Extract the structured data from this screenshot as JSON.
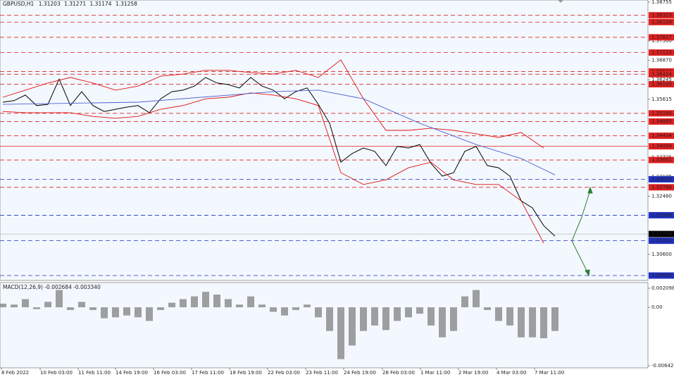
{
  "chart_data": {
    "type": "line",
    "symbol": "GBPUSD,H1",
    "ohlc": [
      1.31203,
      1.31271,
      1.31174,
      1.31258
    ],
    "xlim": [
      -0.25,
      57.25
    ],
    "xticks": [
      {
        "value": -0.125,
        "label": "8 Feb 2022"
      },
      {
        "value": 3.3125,
        "label": "10 Feb 03:00"
      },
      {
        "value": 6.6875,
        "label": "11 Feb 11:00"
      },
      {
        "value": 10,
        "label": "14 Feb 19:00"
      },
      {
        "value": 13.375,
        "label": "16 Feb 03:00"
      },
      {
        "value": 16.75,
        "label": "17 Feb 11:00"
      },
      {
        "value": 20.125,
        "label": "18 Feb 19:00"
      },
      {
        "value": 23.5,
        "label": "22 Feb 03:00"
      },
      {
        "value": 26.875,
        "label": "23 Feb 11:00"
      },
      {
        "value": 30.25,
        "label": "24 Feb 19:00"
      },
      {
        "value": 33.6875,
        "label": "28 Feb 03:00"
      },
      {
        "value": 37.0625,
        "label": "1 Mar 11:00"
      },
      {
        "value": 40.4375,
        "label": "2 Mar 19:00"
      },
      {
        "value": 43.8125,
        "label": "4 Mar 03:00"
      },
      {
        "value": 47.1875,
        "label": "7 Mar 11:00"
      }
    ],
    "ylim": [
      1.29757,
      1.38823
    ],
    "yticks": [
      1.38755,
      {
        "value": 1.375,
        "label": "1.37500"
      },
      {
        "value": 1.3687,
        "label": "1.36870"
      },
      1.36245,
      1.35615,
      1.33735,
      1.33105,
      {
        "value": 1.3248,
        "label": "1.32480"
      },
      {
        "value": 1.306,
        "label": "1.30600"
      }
    ],
    "series": [
      {
        "color": "#000000",
        "x": [
          0,
          1,
          2,
          3,
          4,
          5,
          6,
          7,
          8,
          9,
          10,
          11,
          12,
          13,
          14,
          15,
          16,
          17,
          18,
          19,
          20,
          21,
          22,
          23,
          24,
          25,
          26,
          27,
          28,
          29,
          30,
          31,
          32,
          33,
          34,
          35,
          36,
          37,
          38,
          39,
          40,
          41,
          42,
          43,
          44,
          45,
          46,
          47,
          48,
          49
        ],
        "values": [
          1.3552,
          1.3557,
          1.3575,
          1.3541,
          1.3545,
          1.3627,
          1.3541,
          1.3586,
          1.3541,
          1.3522,
          1.3529,
          1.3536,
          1.3541,
          1.3518,
          1.3563,
          1.3586,
          1.3591,
          1.3604,
          1.3632,
          1.3614,
          1.3609,
          1.3598,
          1.3632,
          1.3604,
          1.3591,
          1.3563,
          1.3586,
          1.3598,
          1.3545,
          1.3484,
          1.3358,
          1.3386,
          1.3404,
          1.3393,
          1.3347,
          1.3409,
          1.3404,
          1.3415,
          1.3354,
          1.3313,
          1.3324,
          1.3393,
          1.3409,
          1.3347,
          1.334,
          1.3313,
          1.3233,
          1.321,
          1.3153,
          1.3119
        ]
      },
      {
        "color": "#e01010",
        "x": [
          0,
          2,
          4,
          6,
          8,
          10,
          12,
          14,
          16,
          18,
          20,
          22,
          24,
          26,
          28,
          30,
          32,
          34,
          36,
          38,
          40,
          42,
          44,
          46,
          48
        ],
        "values": [
          1.3568,
          1.3591,
          1.3614,
          1.3632,
          1.3614,
          1.3591,
          1.3604,
          1.3636,
          1.3643,
          1.3655,
          1.3655,
          1.3648,
          1.3643,
          1.3655,
          1.3632,
          1.3689,
          1.3563,
          1.3461,
          1.3461,
          1.3468,
          1.3461,
          1.345,
          1.3438,
          1.3454,
          1.3404
        ]
      },
      {
        "color": "#e01010",
        "x": [
          0,
          2,
          4,
          6,
          8,
          10,
          12,
          14,
          16,
          18,
          20,
          22,
          24,
          26,
          28,
          30,
          32,
          34,
          36,
          38,
          40,
          42,
          44,
          46,
          48
        ],
        "values": [
          1.3522,
          1.3518,
          1.3518,
          1.3518,
          1.3506,
          1.35,
          1.3506,
          1.3529,
          1.3541,
          1.3563,
          1.3568,
          1.3582,
          1.3575,
          1.3563,
          1.3541,
          1.3324,
          1.3286,
          1.3301,
          1.334,
          1.3358,
          1.3301,
          1.3286,
          1.3286,
          1.3233,
          1.3096
        ]
      },
      {
        "color": "#5060d0",
        "x": [
          0,
          12,
          24,
          28,
          32,
          37,
          42,
          46,
          49
        ],
        "values": [
          1.3545,
          1.3552,
          1.3586,
          1.3591,
          1.3563,
          1.3484,
          1.3415,
          1.337,
          1.3317
        ]
      }
    ],
    "red_levels": [
      1.38329,
      1.38109,
      1.37617,
      1.37123,
      1.36512,
      1.36424,
      {
        "value": 1.361,
        "label": "1.36100"
      },
      {
        "value": 1.3516,
        "label": "1.35160"
      },
      1.34895,
      1.34434,
      1.33651,
      1.32768
    ],
    "solid_level": 1.34094,
    "blue_levels": [
      1.33028,
      1.31866,
      1.31041,
      1.29916
    ],
    "current": 1.31258,
    "macd": {
      "title": "MACD(12,26,9) -0.002684 -0.003340",
      "ylim": [
        -0.006421,
        0.002098
      ],
      "yticks": [
        0.002098,
        {
          "value": 0,
          "label": "0.00"
        },
        -0.006421
      ],
      "color": "#808080",
      "values": [
        0.0004,
        0.0003,
        0.0009,
        -0.0002,
        0.0006,
        0.0019,
        -0.0003,
        0.0006,
        -0.0003,
        -0.0012,
        -0.0011,
        -0.0009,
        -0.0011,
        -0.0015,
        -0.0003,
        0.0005,
        0.0009,
        0.0012,
        0.0017,
        0.0014,
        0.0009,
        0.0003,
        0.0012,
        0.0003,
        -0.0005,
        -0.0009,
        -0.0003,
        0.0003,
        -0.0011,
        -0.0026,
        -0.0057,
        -0.0042,
        -0.0026,
        -0.002,
        -0.0025,
        -0.0015,
        -0.0011,
        -0.0007,
        -0.002,
        -0.0033,
        -0.0026,
        0.0012,
        0.0019,
        -0.0003,
        -0.0015,
        -0.002,
        -0.0033,
        -0.0033,
        -0.0034,
        -0.0026
      ]
    }
  }
}
